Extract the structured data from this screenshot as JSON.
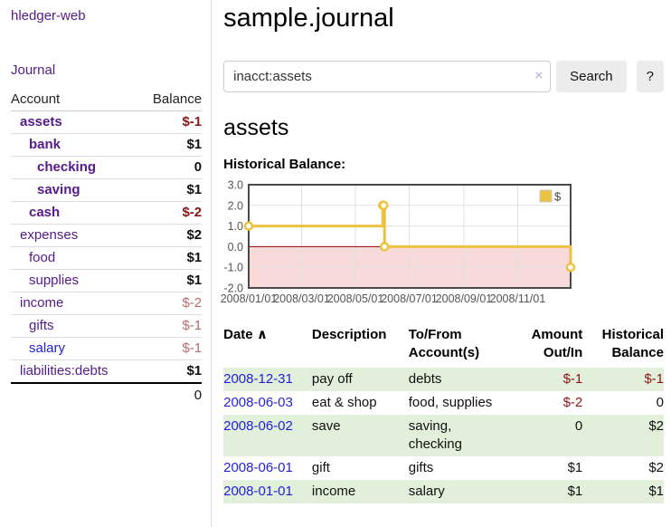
{
  "app": {
    "brand": "hledger-web",
    "nav_journal": "Journal"
  },
  "sidebar": {
    "col_account": "Account",
    "col_balance": "Balance",
    "accounts": [
      {
        "name": "assets",
        "balance": "$-1"
      },
      {
        "name": "bank",
        "balance": "$1"
      },
      {
        "name": "checking",
        "balance": "0"
      },
      {
        "name": "saving",
        "balance": "$1"
      },
      {
        "name": "cash",
        "balance": "$-2"
      },
      {
        "name": "expenses",
        "balance": "$2"
      },
      {
        "name": "food",
        "balance": "$1"
      },
      {
        "name": "supplies",
        "balance": "$1"
      },
      {
        "name": "income",
        "balance": "$-2"
      },
      {
        "name": "gifts",
        "balance": "$-1"
      },
      {
        "name": "salary",
        "balance": "$-1"
      },
      {
        "name": "liabilities:debts",
        "balance": "$1"
      }
    ],
    "total": "0"
  },
  "header": {
    "title": "sample.journal"
  },
  "search": {
    "value": "inacct:assets",
    "clear_icon": "×",
    "button_label": "Search",
    "help_label": "?"
  },
  "account_page": {
    "heading": "assets",
    "chart_label": "Historical Balance:"
  },
  "chart_data": {
    "type": "line",
    "title": "Historical Balance:",
    "x_start": "2008-01-01",
    "x_end": "2008-12-31",
    "ylim": [
      -2,
      3
    ],
    "yticks": [
      3,
      2,
      1,
      0,
      -1,
      -2
    ],
    "xticks": [
      {
        "label": "2008/01/01",
        "date": "2008-01-01"
      },
      {
        "label": "2008/03/01",
        "date": "2008-03-01"
      },
      {
        "label": "2008/05/01",
        "date": "2008-05-01"
      },
      {
        "label": "2008/07/01",
        "date": "2008-07-01"
      },
      {
        "label": "2008/09/01",
        "date": "2008-09-01"
      },
      {
        "label": "2008/11/01",
        "date": "2008-11-01"
      }
    ],
    "grid": true,
    "legend_position": "top-right",
    "zero_line_color": "#8b0000",
    "negative_fill": "#f8dada",
    "border_color": "#4a4a4a",
    "gridline_color": "#e0e0e0",
    "tick_label_color": "#545454",
    "series": [
      {
        "name": "$",
        "color": "#edc240",
        "step": true,
        "points": [
          {
            "date": "2008-01-01",
            "value": 1
          },
          {
            "date": "2008-06-01",
            "value": 2
          },
          {
            "date": "2008-06-02",
            "value": 2
          },
          {
            "date": "2008-06-03",
            "value": 0
          },
          {
            "date": "2008-12-31",
            "value": -1
          }
        ]
      }
    ]
  },
  "register": {
    "columns": {
      "date": "Date",
      "description": "Description",
      "accounts": "To/From\nAccount(s)",
      "amount": "Amount\nOut/In",
      "balance": "Historical\nBalance"
    },
    "sort_arrow": "∧",
    "rows": [
      {
        "date": "2008-12-31",
        "description": "pay off",
        "accounts": "debts",
        "amount": "$-1",
        "balance": "$-1"
      },
      {
        "date": "2008-06-03",
        "description": "eat & shop",
        "accounts": "food, supplies",
        "amount": "$-2",
        "balance": "0"
      },
      {
        "date": "2008-06-02",
        "description": "save",
        "accounts": "saving,\nchecking",
        "amount": "0",
        "balance": "$2"
      },
      {
        "date": "2008-06-01",
        "description": "gift",
        "accounts": "gifts",
        "amount": "$1",
        "balance": "$2"
      },
      {
        "date": "2008-01-01",
        "description": "income",
        "accounts": "salary",
        "amount": "$1",
        "balance": "$1"
      }
    ]
  }
}
